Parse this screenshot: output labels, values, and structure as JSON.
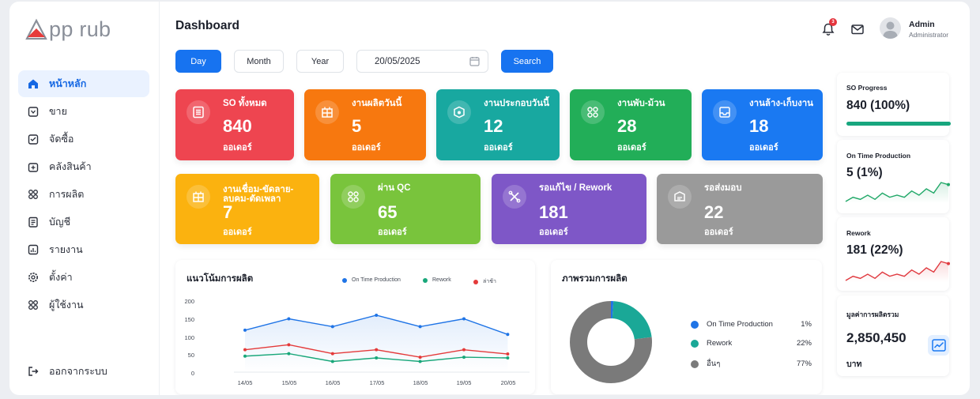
{
  "app": {
    "logo_text": "pp rub",
    "page_title": "Dashboard"
  },
  "sidebar": {
    "items": [
      {
        "label": "หน้าหลัก",
        "icon": "home-icon",
        "active": true
      },
      {
        "label": "ขาย",
        "icon": "sales-icon"
      },
      {
        "label": "จัดซื้อ",
        "icon": "purchase-icon"
      },
      {
        "label": "คลังสินค้า",
        "icon": "warehouse-icon"
      },
      {
        "label": "การผลิต",
        "icon": "production-icon"
      },
      {
        "label": "บัญชี",
        "icon": "accounting-icon"
      },
      {
        "label": "รายงาน",
        "icon": "report-icon"
      },
      {
        "label": "ตั้งค่า",
        "icon": "settings-icon"
      },
      {
        "label": "ผู้ใช้งาน",
        "icon": "users-icon"
      }
    ],
    "logout_label": "ออกจากระบบ"
  },
  "header": {
    "notification_count": "3",
    "user_name": "Admin",
    "user_role": "Administrator"
  },
  "filters": {
    "day_label": "Day",
    "month_label": "Month",
    "year_label": "Year",
    "date_value": "20/05/2025",
    "search_label": "Search"
  },
  "stats_row1": [
    {
      "label": "SO ทั้งหมด",
      "value": "840",
      "unit": "ออเดอร์",
      "color": "#ee4550"
    },
    {
      "label": "งานผลิตวันนี้",
      "value": "5",
      "unit": "ออเดอร์",
      "color": "#f7780f"
    },
    {
      "label": "งานประกอบวันนี้",
      "value": "12",
      "unit": "ออเดอร์",
      "color": "#18a8a0"
    },
    {
      "label": "งานพับ-ม้วน",
      "value": "28",
      "unit": "ออเดอร์",
      "color": "#22ae58"
    },
    {
      "label": "งานล้าง-เก็บงาน",
      "value": "18",
      "unit": "ออเดอร์",
      "color": "#1a79f2"
    }
  ],
  "stats_row2": [
    {
      "label_line1": "งานเชื่อม-ขัดลาย-",
      "label_line2": "ลบคม-ตัดเพลา",
      "value": "7",
      "unit": "ออเดอร์",
      "color": "#fbb20f"
    },
    {
      "label_line1": "ผ่าน QC",
      "label_line2": "",
      "value": "65",
      "unit": "ออเดอร์",
      "color": "#79c43c"
    },
    {
      "label_line1": "รอแก้ไข / Rework",
      "label_line2": "",
      "value": "181",
      "unit": "ออเดอร์",
      "color": "#7e57c7"
    },
    {
      "label_line1": "รอส่งมอบ",
      "label_line2": "",
      "value": "22",
      "unit": "ออเดอร์",
      "color": "#9a9a9a"
    }
  ],
  "chart_data": [
    {
      "type": "line",
      "title": "แนวโน้มการผลิต",
      "categories": [
        "14/05",
        "15/05",
        "16/05",
        "17/05",
        "18/05",
        "19/05",
        "20/05"
      ],
      "ylim": [
        0,
        200
      ],
      "yticks": [
        "200",
        "150",
        "100",
        "50",
        "0"
      ],
      "grid": false,
      "legend_position": "top-right",
      "series": [
        {
          "name": "On Time Production",
          "values": [
            118,
            150,
            128,
            160,
            128,
            150,
            106
          ],
          "color": "#1f74e6"
        },
        {
          "name": "Rework",
          "values": [
            45,
            52,
            30,
            40,
            30,
            42,
            40
          ],
          "color": "#19a77a"
        },
        {
          "name": "ล่าช้า",
          "values": [
            63,
            77,
            52,
            63,
            42,
            63,
            51
          ],
          "color": "#e43a3a"
        }
      ]
    },
    {
      "type": "pie",
      "title": "ภาพรวมการผลิต",
      "series": [
        {
          "name": "On Time Production",
          "value": 1,
          "label": "1%",
          "color": "#1f74e6"
        },
        {
          "name": "Rework",
          "value": 22,
          "label": "22%",
          "color": "#1aa897"
        },
        {
          "name": "อื่นๆ",
          "value": 77,
          "label": "77%",
          "color": "#7a7a7a"
        }
      ]
    },
    {
      "type": "line",
      "title": "On Time Production",
      "values": [
        3,
        5,
        4,
        6,
        4,
        7,
        5,
        6,
        5,
        8,
        6,
        9,
        7,
        12,
        11
      ],
      "color": "#20a868"
    },
    {
      "type": "line",
      "title": "Rework",
      "values": [
        3,
        5,
        4,
        6,
        4,
        7,
        5,
        6,
        5,
        8,
        6,
        9,
        7,
        12,
        11
      ],
      "color": "#e0393f"
    }
  ],
  "right_cards": {
    "so_progress": {
      "title": "SO Progress",
      "value": "840 (100%)",
      "progress": 1.0,
      "color": "#17a67e"
    },
    "on_time": {
      "title": "On Time Production",
      "value": "5 (1%)"
    },
    "rework": {
      "title": "Rework",
      "value": "181 (22%)"
    },
    "total_value": {
      "title": "มูลค่าการผลิตรวม",
      "value": "2,850,450",
      "unit": "บาท"
    }
  }
}
